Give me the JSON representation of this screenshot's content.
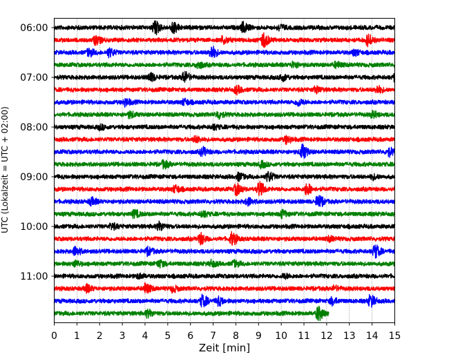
{
  "chart_data": {
    "type": "line",
    "title": "",
    "xlabel": "Zeit  [min]",
    "ylabel": "UTC (Lokalzeit = UTC + 02:00)",
    "xlim": [
      0,
      15
    ],
    "xticks": [
      0,
      1,
      2,
      3,
      4,
      5,
      6,
      7,
      8,
      9,
      10,
      11,
      12,
      13,
      14,
      15
    ],
    "vertical_grid": "dotted",
    "row_interval_minutes": 15,
    "rows": [
      {
        "time": "06:00",
        "color": "#000000",
        "end_min": 15,
        "events": [
          [
            4.4,
            1.0
          ],
          [
            5.2,
            0.8
          ],
          [
            8.3,
            0.7
          ],
          [
            9.9,
            0.4
          ]
        ]
      },
      {
        "time": "06:15",
        "color": "#ff0000",
        "end_min": 15,
        "events": [
          [
            1.8,
            0.6
          ],
          [
            7.4,
            0.5
          ],
          [
            9.2,
            1.0
          ],
          [
            13.8,
            0.8
          ]
        ]
      },
      {
        "time": "06:30",
        "color": "#0000ff",
        "end_min": 15,
        "events": [
          [
            1.5,
            0.5
          ],
          [
            2.4,
            0.6
          ],
          [
            6.9,
            0.9
          ],
          [
            13.2,
            0.4
          ]
        ]
      },
      {
        "time": "06:45",
        "color": "#008000",
        "end_min": 15,
        "events": [
          [
            6.3,
            0.5
          ],
          [
            10.5,
            0.4
          ],
          [
            12.4,
            0.4
          ]
        ]
      },
      {
        "time": "07:00",
        "color": "#000000",
        "end_min": 15,
        "events": [
          [
            4.2,
            0.6
          ],
          [
            5.7,
            0.8
          ],
          [
            10.0,
            0.5
          ],
          [
            15.0,
            0.6
          ]
        ]
      },
      {
        "time": "07:15",
        "color": "#ff0000",
        "end_min": 15,
        "events": [
          [
            8.0,
            0.5
          ],
          [
            11.5,
            0.4
          ],
          [
            14.2,
            0.5
          ]
        ]
      },
      {
        "time": "07:30",
        "color": "#0000ff",
        "end_min": 15,
        "events": [
          [
            3.1,
            0.5
          ],
          [
            5.7,
            0.4
          ],
          [
            10.7,
            0.5
          ]
        ]
      },
      {
        "time": "07:45",
        "color": "#008000",
        "end_min": 15,
        "events": [
          [
            3.3,
            0.4
          ],
          [
            7.2,
            0.5
          ],
          [
            14.0,
            0.4
          ]
        ]
      },
      {
        "time": "08:00",
        "color": "#000000",
        "end_min": 15,
        "events": [
          [
            2.0,
            0.3
          ],
          [
            7.0,
            0.3
          ]
        ]
      },
      {
        "time": "08:15",
        "color": "#ff0000",
        "end_min": 15,
        "events": [
          [
            6.2,
            0.4
          ],
          [
            10.2,
            0.5
          ]
        ]
      },
      {
        "time": "08:30",
        "color": "#0000ff",
        "end_min": 15,
        "events": [
          [
            6.5,
            0.6
          ],
          [
            10.9,
            1.0
          ],
          [
            14.7,
            0.6
          ]
        ]
      },
      {
        "time": "08:45",
        "color": "#008000",
        "end_min": 15,
        "events": [
          [
            4.8,
            0.5
          ],
          [
            9.1,
            0.4
          ]
        ]
      },
      {
        "time": "09:00",
        "color": "#000000",
        "end_min": 15,
        "events": [
          [
            8.1,
            0.5
          ],
          [
            9.4,
            0.7
          ],
          [
            14.0,
            0.3
          ]
        ]
      },
      {
        "time": "09:15",
        "color": "#ff0000",
        "end_min": 15,
        "events": [
          [
            5.3,
            0.5
          ],
          [
            8.0,
            0.8
          ],
          [
            9.0,
            1.0
          ],
          [
            11.1,
            0.8
          ]
        ]
      },
      {
        "time": "09:30",
        "color": "#0000ff",
        "end_min": 15,
        "events": [
          [
            1.6,
            0.5
          ],
          [
            8.5,
            0.5
          ],
          [
            11.6,
            0.9
          ]
        ]
      },
      {
        "time": "09:45",
        "color": "#008000",
        "end_min": 15,
        "events": [
          [
            3.5,
            0.5
          ],
          [
            6.5,
            0.4
          ],
          [
            10.0,
            0.5
          ]
        ]
      },
      {
        "time": "10:00",
        "color": "#000000",
        "end_min": 15,
        "events": [
          [
            2.5,
            0.4
          ],
          [
            4.6,
            0.6
          ]
        ]
      },
      {
        "time": "10:15",
        "color": "#ff0000",
        "end_min": 15,
        "events": [
          [
            6.4,
            0.8
          ],
          [
            7.8,
            0.9
          ],
          [
            12.1,
            0.3
          ]
        ]
      },
      {
        "time": "10:30",
        "color": "#0000ff",
        "end_min": 15,
        "events": [
          [
            0.9,
            0.6
          ],
          [
            4.1,
            0.5
          ],
          [
            14.1,
            0.9
          ]
        ]
      },
      {
        "time": "10:45",
        "color": "#008000",
        "end_min": 15,
        "events": [
          [
            0.9,
            0.4
          ],
          [
            4.6,
            0.5
          ],
          [
            6.9,
            0.4
          ],
          [
            7.9,
            0.4
          ]
        ]
      },
      {
        "time": "11:00",
        "color": "#000000",
        "end_min": 15,
        "events": [
          [
            3.7,
            0.3
          ],
          [
            10.1,
            0.3
          ]
        ]
      },
      {
        "time": "11:15",
        "color": "#ff0000",
        "end_min": 15,
        "events": [
          [
            1.4,
            0.5
          ],
          [
            4.0,
            0.7
          ],
          [
            5.2,
            0.4
          ],
          [
            12.3,
            0.3
          ]
        ]
      },
      {
        "time": "11:30",
        "color": "#0000ff",
        "end_min": 15,
        "events": [
          [
            6.5,
            0.8
          ],
          [
            7.2,
            0.6
          ],
          [
            12.2,
            0.5
          ],
          [
            13.9,
            0.8
          ]
        ]
      },
      {
        "time": "11:45",
        "color": "#008000",
        "end_min": 12.1,
        "events": [
          [
            4.1,
            0.5
          ],
          [
            11.6,
            1.0
          ]
        ]
      }
    ],
    "ytick_labels": [
      "06:00",
      "07:00",
      "08:00",
      "09:00",
      "10:00",
      "11:00"
    ]
  }
}
